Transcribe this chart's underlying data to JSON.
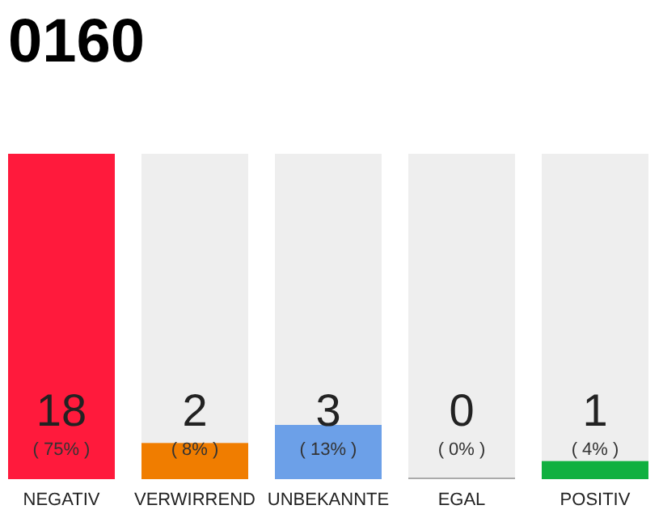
{
  "chart_data": {
    "type": "bar",
    "title": "0160",
    "categories": [
      "NEGATIV",
      "VERWIRREND",
      "UNBEKANNTE",
      "EGAL",
      "POSITIV"
    ],
    "values": [
      18,
      2,
      3,
      0,
      1
    ],
    "colors": [
      "#ff1a3c",
      "#f07d00",
      "#6ca0e8",
      "#aaaaaa",
      "#10b040"
    ],
    "data_labels": true,
    "annotations": [
      "( 75% )",
      "( 8% )",
      "( 13% )",
      "( 0% )",
      "( 4% )"
    ]
  }
}
